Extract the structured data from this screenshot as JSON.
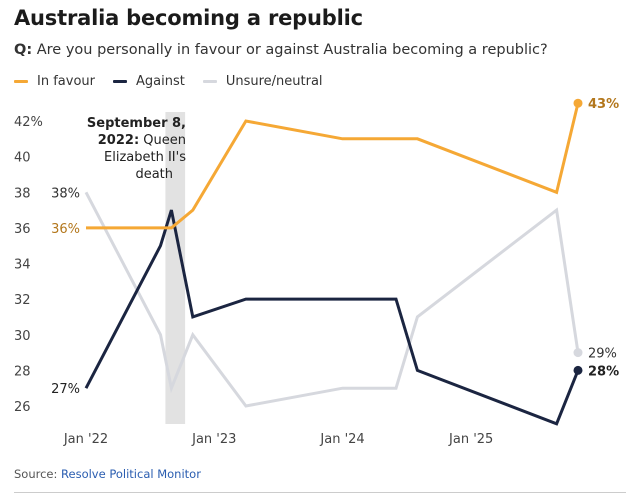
{
  "title": "Australia becoming a republic",
  "question_prefix": "Q:",
  "question": "Are you personally in favour or against Australia becoming a republic?",
  "source_prefix": "Source: ",
  "source_name": "Resolve Political Monitor",
  "colors": {
    "in_favour": "#f5a835",
    "against": "#1b2541",
    "unsure": "#d6d8de",
    "in_favour_label": "#b3771c",
    "band": "#e2e2e2",
    "axis_text": "#444444"
  },
  "chart_data": {
    "type": "line",
    "xlabel": "",
    "ylabel": "",
    "x": [
      "2022-01",
      "2022-08",
      "2022-09",
      "2022-11",
      "2023-04",
      "2024-01",
      "2024-06",
      "2024-08",
      "2025-09",
      "2025-11"
    ],
    "x_ticks": [
      "Jan '22",
      "Jan '23",
      "Jan '24",
      "Jan '25"
    ],
    "x_tick_positions": [
      "2022-01",
      "2023-01",
      "2024-01",
      "2025-01"
    ],
    "y_ticks": [
      "42%",
      "40",
      "38",
      "36",
      "34",
      "32",
      "30",
      "28",
      "26"
    ],
    "ylim": [
      25,
      43
    ],
    "legend": "top-left",
    "grid": false,
    "series": [
      {
        "name": "In favour",
        "key": "in_favour",
        "values": [
          36,
          36,
          36,
          37,
          42,
          41,
          41,
          41,
          38,
          43
        ],
        "start_label": "36%",
        "end_label": "43%"
      },
      {
        "name": "Against",
        "key": "against",
        "values": [
          27,
          35,
          37,
          31,
          32,
          32,
          32,
          28,
          25,
          28
        ],
        "start_label": "27%",
        "end_label": "28%"
      },
      {
        "name": "Unsure/neutral",
        "key": "unsure",
        "values": [
          38,
          30,
          27,
          30,
          26,
          27,
          27,
          31,
          37,
          29
        ],
        "start_label": "38%",
        "end_label": "29%"
      }
    ],
    "annotation": {
      "band": [
        "2022-08-15",
        "2022-10-10"
      ],
      "bold": "September 8, 2022:",
      "lines": [
        "September 8,",
        "2022: Queen",
        "Elizabeth II's",
        "death"
      ]
    }
  }
}
